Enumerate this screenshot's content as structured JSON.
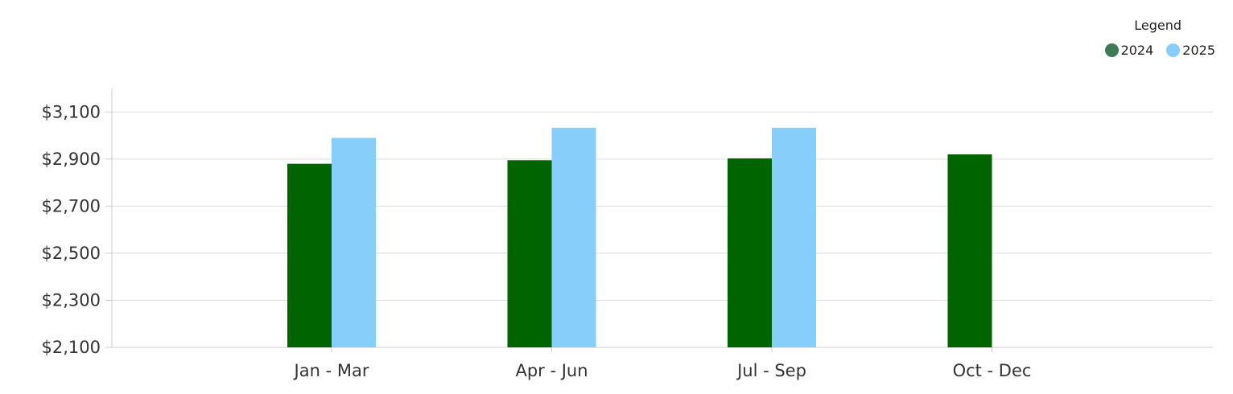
{
  "chart_data": {
    "type": "bar",
    "categories": [
      "Jan - Mar",
      "Apr - Jun",
      "Jul - Sep",
      "Oct - Dec"
    ],
    "series": [
      {
        "name": "2024",
        "color": "#006400",
        "values": [
          2880,
          2895,
          2903,
          2920
        ]
      },
      {
        "name": "2025",
        "color": "#87CEFA",
        "values": [
          2990,
          3033,
          3033,
          null
        ]
      }
    ],
    "yticks": [
      2100,
      2300,
      2500,
      2700,
      2900,
      3100
    ],
    "ytick_labels": [
      "$2,100",
      "$2,300",
      "$2,500",
      "$2,700",
      "$2,900",
      "$3,100"
    ],
    "ylim": [
      2100,
      3200
    ],
    "grid": true,
    "legend": {
      "title": "Legend",
      "position": "top-right"
    }
  }
}
